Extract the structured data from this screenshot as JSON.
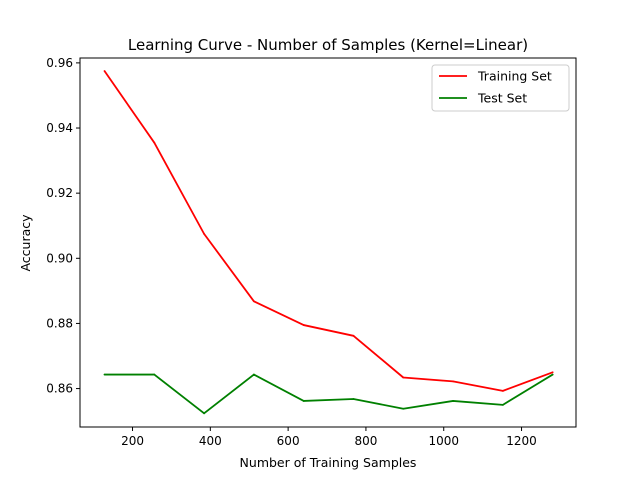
{
  "chart_data": {
    "type": "line",
    "title": "Learning Curve - Number of Samples (Kernel=Linear)",
    "xlabel": "Number of Training Samples",
    "ylabel": "Accuracy",
    "xlim": [
      65,
      1340
    ],
    "ylim": [
      0.8482,
      0.9615
    ],
    "xticks": [
      200,
      400,
      600,
      800,
      1000,
      1200
    ],
    "yticks": [
      0.86,
      0.88,
      0.9,
      0.92,
      0.94,
      0.96
    ],
    "xtick_labels": [
      "200",
      "400",
      "600",
      "800",
      "1000",
      "1200"
    ],
    "ytick_labels": [
      "0.86",
      "0.88",
      "0.90",
      "0.92",
      "0.94",
      "0.96"
    ],
    "x": [
      128,
      256,
      384,
      512,
      640,
      768,
      896,
      1024,
      1152,
      1280
    ],
    "series": [
      {
        "name": "Training Set",
        "color": "#ff0000",
        "values": [
          0.9575,
          0.9355,
          0.9075,
          0.8868,
          0.8795,
          0.8762,
          0.8634,
          0.8622,
          0.8593,
          0.865
        ]
      },
      {
        "name": "Test Set",
        "color": "#008000",
        "values": [
          0.8643,
          0.8643,
          0.8524,
          0.8643,
          0.8562,
          0.8568,
          0.8538,
          0.8562,
          0.855,
          0.8643
        ]
      }
    ],
    "legend_position": "upper-right",
    "grid": false
  }
}
